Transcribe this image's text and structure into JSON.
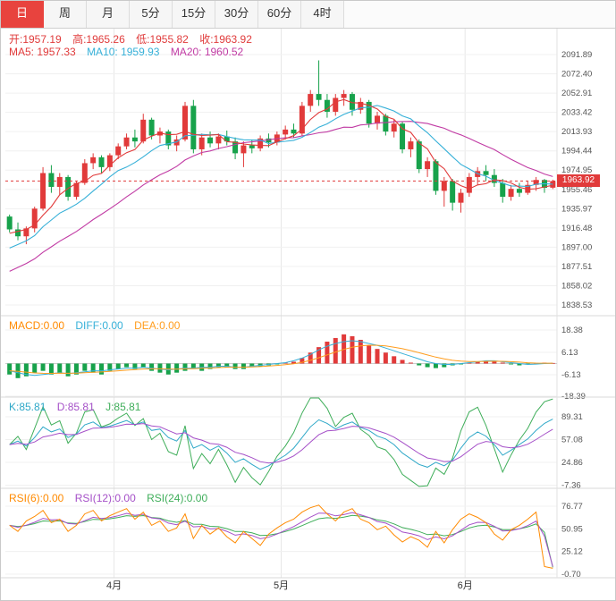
{
  "tabs": {
    "items": [
      {
        "id": "day",
        "label": "日",
        "active": true
      },
      {
        "id": "week",
        "label": "周",
        "active": false
      },
      {
        "id": "month",
        "label": "月",
        "active": false
      },
      {
        "id": "min5",
        "label": "5分",
        "active": false
      },
      {
        "id": "min15",
        "label": "15分",
        "active": false
      },
      {
        "id": "min30",
        "label": "30分",
        "active": false
      },
      {
        "id": "min60",
        "label": "60分",
        "active": false
      },
      {
        "id": "hour4",
        "label": "4时",
        "active": false
      }
    ]
  },
  "main_chart": {
    "ohlc_labels": {
      "open": "开:1957.19",
      "high": "高:1965.26",
      "low": "低:1955.82",
      "close": "收:1963.92"
    },
    "ma_labels": {
      "ma5": "MA5: 1957.33",
      "ma10": "MA10: 1959.93",
      "ma20": "MA20: 1960.52"
    },
    "current_price_label": "1963.92"
  },
  "indicator_labels": {
    "macd": {
      "macd": "MACD:0.00",
      "diff": "DIFF:0.00",
      "dea": "DEA:0.00"
    },
    "kdj": {
      "k": "K:85.81",
      "d": "D:85.81",
      "j": "J:85.81"
    },
    "rsi": {
      "rsi6": "RSI(6):0.00",
      "rsi12": "RSI(12):0.00",
      "rsi24": "RSI(24):0.00"
    }
  },
  "colors": {
    "up": "#e13a3a",
    "down": "#17a24b",
    "ma5": "#e13a3a",
    "ma10": "#36b0d8",
    "ma20": "#c13ba4",
    "diff": "#36b0d8",
    "dea": "#ff9d1e",
    "k": "#2fa8c8",
    "d": "#a550c8",
    "j": "#3fae5a",
    "rsi6": "#ff8a00",
    "rsi12": "#a550c8",
    "rsi24": "#3fae5a",
    "price_line": "#e13a3a",
    "active_tab": "#e8433e",
    "header_red": "#e03b3b"
  },
  "chart_data": {
    "type": "candlestick",
    "title": "",
    "x_month_markers": [
      {
        "index": 13,
        "label": "4月"
      },
      {
        "index": 33,
        "label": "5月"
      },
      {
        "index": 55,
        "label": "6月"
      }
    ],
    "y_ticks": [
      2091.89,
      2072.4,
      2052.91,
      2033.42,
      2013.93,
      1994.44,
      1974.95,
      1955.46,
      1935.97,
      1916.48,
      1897.0,
      1877.51,
      1858.02,
      1838.53
    ],
    "current_price": 1963.92,
    "last_candle": {
      "open": 1957.19,
      "high": 1965.26,
      "low": 1955.82,
      "close": 1963.92
    },
    "ma_values": {
      "ma5": 1957.33,
      "ma10": 1959.93,
      "ma20": 1960.52
    },
    "ohlc": [
      [
        1928,
        1930,
        1912,
        1915
      ],
      [
        1915,
        1922,
        1904,
        1908
      ],
      [
        1908,
        1918,
        1900,
        1916
      ],
      [
        1916,
        1938,
        1912,
        1936
      ],
      [
        1936,
        1978,
        1934,
        1972
      ],
      [
        1972,
        1980,
        1952,
        1958
      ],
      [
        1958,
        1972,
        1950,
        1968
      ],
      [
        1968,
        1970,
        1944,
        1948
      ],
      [
        1948,
        1964,
        1945,
        1962
      ],
      [
        1962,
        1986,
        1960,
        1982
      ],
      [
        1982,
        1992,
        1976,
        1988
      ],
      [
        1988,
        1990,
        1972,
        1978
      ],
      [
        1978,
        1992,
        1974,
        1990
      ],
      [
        1990,
        2002,
        1986,
        1999
      ],
      [
        1999,
        2012,
        1996,
        2008
      ],
      [
        2008,
        2016,
        1998,
        2004
      ],
      [
        2004,
        2032,
        2002,
        2026
      ],
      [
        2026,
        2028,
        2006,
        2010
      ],
      [
        2010,
        2018,
        2002,
        2014
      ],
      [
        2014,
        2016,
        1996,
        2000
      ],
      [
        2000,
        2010,
        1994,
        2006
      ],
      [
        2006,
        2044,
        2004,
        2040
      ],
      [
        2040,
        2046,
        1992,
        1996
      ],
      [
        1996,
        2012,
        1990,
        2008
      ],
      [
        2008,
        2014,
        1998,
        2002
      ],
      [
        2002,
        2012,
        1996,
        2009
      ],
      [
        2009,
        2015,
        2000,
        2004
      ],
      [
        2004,
        2008,
        1986,
        1992
      ],
      [
        1992,
        2004,
        1978,
        2000
      ],
      [
        2000,
        2006,
        1992,
        1997
      ],
      [
        1997,
        2010,
        1994,
        2007
      ],
      [
        2007,
        2012,
        1998,
        2003
      ],
      [
        2003,
        2014,
        2000,
        2011
      ],
      [
        2011,
        2020,
        2006,
        2016
      ],
      [
        2016,
        2022,
        2008,
        2012
      ],
      [
        2012,
        2044,
        2010,
        2040
      ],
      [
        2040,
        2056,
        2034,
        2052
      ],
      [
        2052,
        2086,
        2040,
        2046
      ],
      [
        2046,
        2052,
        2028,
        2034
      ],
      [
        2034,
        2052,
        2030,
        2048
      ],
      [
        2048,
        2056,
        2040,
        2052
      ],
      [
        2052,
        2054,
        2030,
        2036
      ],
      [
        2036,
        2048,
        2032,
        2044
      ],
      [
        2044,
        2046,
        2018,
        2022
      ],
      [
        2022,
        2034,
        2016,
        2030
      ],
      [
        2030,
        2032,
        2010,
        2014
      ],
      [
        2014,
        2026,
        2008,
        2022
      ],
      [
        2022,
        2024,
        1992,
        1996
      ],
      [
        1996,
        2008,
        1988,
        2004
      ],
      [
        2004,
        2006,
        1972,
        1976
      ],
      [
        1976,
        1988,
        1968,
        1984
      ],
      [
        1984,
        1986,
        1950,
        1954
      ],
      [
        1954,
        1968,
        1938,
        1964
      ],
      [
        1964,
        1966,
        1934,
        1942
      ],
      [
        1942,
        1956,
        1932,
        1952
      ],
      [
        1952,
        1972,
        1948,
        1968
      ],
      [
        1968,
        1978,
        1960,
        1974
      ],
      [
        1974,
        1980,
        1964,
        1970
      ],
      [
        1970,
        1976,
        1958,
        1962
      ],
      [
        1962,
        1966,
        1942,
        1948
      ],
      [
        1948,
        1960,
        1944,
        1956
      ],
      [
        1956,
        1962,
        1948,
        1952
      ],
      [
        1952,
        1964,
        1950,
        1960
      ],
      [
        1960,
        1968,
        1954,
        1965
      ],
      [
        1965,
        1966,
        1952,
        1957
      ],
      [
        1957.19,
        1965.26,
        1955.82,
        1963.92
      ]
    ],
    "pre_closes": [
      1830,
      1828,
      1836,
      1842,
      1840,
      1848,
      1854,
      1852,
      1860,
      1866,
      1864,
      1872,
      1878,
      1884,
      1882,
      1890,
      1898,
      1906,
      1914,
      1922
    ],
    "ma_periods": [
      5,
      10,
      20
    ],
    "macd": {
      "ticks": [
        18.38,
        6.13,
        -6.13,
        -18.39
      ],
      "hist": [
        -6,
        -8,
        -7,
        -5,
        -4,
        -6,
        -5,
        -7,
        -6,
        -4,
        -5,
        -6,
        -4,
        -3,
        -2,
        -3,
        -2,
        -4,
        -5,
        -6,
        -5,
        -4,
        -3,
        -4,
        -3,
        -2,
        -2,
        -3,
        -3,
        -2,
        -1.5,
        -1,
        -0.5,
        0.5,
        1,
        3,
        6,
        9,
        12,
        14,
        16,
        15,
        13,
        10,
        8,
        6,
        4,
        2,
        0.5,
        -1,
        -2,
        -2.5,
        -2,
        -1,
        -0.5,
        0.5,
        1,
        1.5,
        1,
        0.5,
        -0.5,
        -1,
        -0.5,
        0.3,
        0.5,
        0.3
      ],
      "diff": [
        -4,
        -5,
        -6,
        -6.5,
        -6,
        -5.5,
        -5,
        -5.5,
        -5,
        -4.5,
        -4,
        -4,
        -3.5,
        -3,
        -2.5,
        -2.5,
        -2,
        -2.5,
        -3,
        -3.5,
        -3,
        -2.5,
        -2.5,
        -2,
        -2,
        -1.5,
        -1.5,
        -2,
        -2,
        -1.5,
        -1,
        -0.5,
        0,
        0.5,
        1.5,
        3,
        5,
        7.5,
        9.5,
        11,
        12,
        12.5,
        12,
        11,
        10,
        8.5,
        7,
        5.5,
        4,
        2.5,
        1,
        0,
        -0.5,
        -0.5,
        0,
        0.5,
        1,
        1.5,
        1.5,
        1,
        0.5,
        0,
        -0.5,
        -0.3,
        0,
        0.2
      ]
    },
    "kdj": {
      "ticks": [
        89.31,
        57.08,
        24.86,
        -7.36
      ],
      "k": [
        50,
        55,
        48,
        60,
        75,
        68,
        72,
        60,
        65,
        78,
        82,
        74,
        76,
        80,
        84,
        78,
        82,
        70,
        72,
        60,
        55,
        70,
        45,
        50,
        42,
        48,
        38,
        25,
        30,
        22,
        15,
        20,
        28,
        35,
        45,
        60,
        75,
        85,
        80,
        72,
        78,
        82,
        74,
        70,
        62,
        58,
        50,
        38,
        30,
        22,
        18,
        25,
        20,
        28,
        45,
        60,
        68,
        62,
        50,
        35,
        42,
        50,
        58,
        70,
        80,
        86
      ]
    },
    "rsi": {
      "ticks": [
        76.77,
        50.95,
        25.12,
        -0.7
      ],
      "rsi6": [
        55,
        48,
        60,
        65,
        72,
        58,
        62,
        48,
        55,
        68,
        72,
        60,
        66,
        70,
        74,
        62,
        70,
        55,
        60,
        48,
        52,
        68,
        40,
        55,
        45,
        52,
        42,
        35,
        48,
        40,
        32,
        45,
        52,
        58,
        62,
        70,
        75,
        78,
        68,
        60,
        70,
        74,
        62,
        58,
        50,
        54,
        44,
        36,
        42,
        38,
        30,
        48,
        35,
        50,
        62,
        68,
        64,
        58,
        45,
        38,
        50,
        55,
        62,
        70,
        8,
        6
      ]
    }
  }
}
